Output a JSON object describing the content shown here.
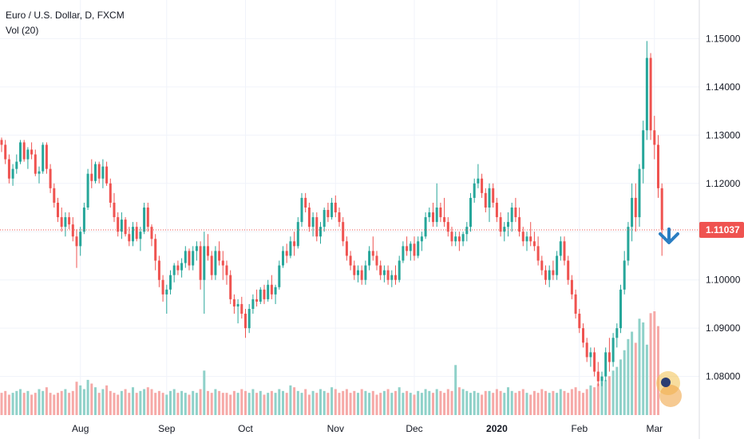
{
  "header": {
    "title": "Euro / U.S. Dollar, D, FXCM",
    "indicator": "Vol (20)"
  },
  "colors": {
    "up": "#26a69a",
    "down": "#ef5350",
    "vol_up": "#8fd1c9",
    "vol_down": "#f6a9a7",
    "grid": "#f0f3fa",
    "axis_text": "#131722",
    "price_line": "#ef5350",
    "arrow": "#2a7ec2",
    "badge_bg": "#f2c14e"
  },
  "price_badge": "1.11037",
  "chart_data": {
    "type": "candlestick",
    "symbol": "EURUSD",
    "timeframe": "D",
    "ylim": [
      1.072,
      1.158
    ],
    "y_ticks": [
      "1.08000",
      "1.09000",
      "1.10000",
      "1.11000",
      "1.12000",
      "1.13000",
      "1.14000",
      "1.15000"
    ],
    "x_ticks": [
      {
        "label": "Aug",
        "bar": 21
      },
      {
        "label": "Sep",
        "bar": 44
      },
      {
        "label": "Oct",
        "bar": 65
      },
      {
        "label": "Nov",
        "bar": 89
      },
      {
        "label": "Dec",
        "bar": 110
      },
      {
        "label": "2020",
        "bar": 132
      },
      {
        "label": "Feb",
        "bar": 154
      },
      {
        "label": "Mar",
        "bar": 174
      }
    ],
    "last_price": 1.11037,
    "bars": [
      [
        1.129,
        1.1295,
        1.1265,
        1.128
      ],
      [
        1.128,
        1.129,
        1.124,
        1.125
      ],
      [
        1.125,
        1.126,
        1.12,
        1.121
      ],
      [
        1.121,
        1.124,
        1.1195,
        1.123
      ],
      [
        1.123,
        1.126,
        1.122,
        1.1245
      ],
      [
        1.1245,
        1.129,
        1.124,
        1.1285
      ],
      [
        1.1285,
        1.129,
        1.1245,
        1.125
      ],
      [
        1.125,
        1.1275,
        1.123,
        1.127
      ],
      [
        1.127,
        1.1285,
        1.125,
        1.126
      ],
      [
        1.126,
        1.127,
        1.1215,
        1.122
      ],
      [
        1.122,
        1.1235,
        1.12,
        1.1225
      ],
      [
        1.1225,
        1.1285,
        1.122,
        1.128
      ],
      [
        1.128,
        1.1285,
        1.122,
        1.123
      ],
      [
        1.123,
        1.124,
        1.118,
        1.119
      ],
      [
        1.119,
        1.12,
        1.115,
        1.116
      ],
      [
        1.116,
        1.117,
        1.112,
        1.113
      ],
      [
        1.113,
        1.115,
        1.11,
        1.111
      ],
      [
        1.111,
        1.114,
        1.109,
        1.113
      ],
      [
        1.113,
        1.114,
        1.1105,
        1.1115
      ],
      [
        1.1115,
        1.113,
        1.108,
        1.109
      ],
      [
        1.109,
        1.1105,
        1.1025,
        1.107
      ],
      [
        1.107,
        1.111,
        1.105,
        1.11
      ],
      [
        1.11,
        1.116,
        1.1095,
        1.115
      ],
      [
        1.115,
        1.123,
        1.1145,
        1.122
      ],
      [
        1.122,
        1.125,
        1.119,
        1.1205
      ],
      [
        1.1205,
        1.1245,
        1.12,
        1.124
      ],
      [
        1.124,
        1.1245,
        1.12,
        1.121
      ],
      [
        1.121,
        1.125,
        1.119,
        1.1235
      ],
      [
        1.1235,
        1.1245,
        1.1195,
        1.12
      ],
      [
        1.12,
        1.121,
        1.115,
        1.116
      ],
      [
        1.116,
        1.118,
        1.112,
        1.113
      ],
      [
        1.113,
        1.114,
        1.109,
        1.11
      ],
      [
        1.11,
        1.114,
        1.1085,
        1.1125
      ],
      [
        1.1125,
        1.113,
        1.109,
        1.1095
      ],
      [
        1.1095,
        1.111,
        1.107,
        1.108
      ],
      [
        1.108,
        1.112,
        1.107,
        1.111
      ],
      [
        1.111,
        1.112,
        1.108,
        1.1085
      ],
      [
        1.1085,
        1.111,
        1.106,
        1.11
      ],
      [
        1.11,
        1.116,
        1.1095,
        1.115
      ],
      [
        1.115,
        1.116,
        1.11,
        1.111
      ],
      [
        1.111,
        1.1115,
        1.107,
        1.1085
      ],
      [
        1.1085,
        1.1095,
        1.102,
        1.104
      ],
      [
        1.104,
        1.105,
        1.0985,
        1.1
      ],
      [
        1.1,
        1.101,
        1.0955,
        1.097
      ],
      [
        1.097,
        1.099,
        1.093,
        1.098
      ],
      [
        1.098,
        1.102,
        1.097,
        1.101
      ],
      [
        1.101,
        1.1035,
        1.0995,
        1.103
      ],
      [
        1.103,
        1.104,
        1.101,
        1.102
      ],
      [
        1.102,
        1.1045,
        1.1005,
        1.1035
      ],
      [
        1.1035,
        1.107,
        1.1025,
        1.106
      ],
      [
        1.106,
        1.1065,
        1.102,
        1.103
      ],
      [
        1.103,
        1.107,
        1.102,
        1.106
      ],
      [
        1.106,
        1.108,
        1.104,
        1.107
      ],
      [
        1.107,
        1.108,
        1.098,
        1.1
      ],
      [
        1.1,
        1.11,
        1.093,
        1.107
      ],
      [
        1.107,
        1.1095,
        1.104,
        1.105
      ],
      [
        1.105,
        1.106,
        1.1,
        1.101
      ],
      [
        1.101,
        1.107,
        1.1,
        1.106
      ],
      [
        1.106,
        1.108,
        1.103,
        1.104
      ],
      [
        1.104,
        1.106,
        1.1,
        1.103
      ],
      [
        1.103,
        1.104,
        1.099,
        1.101
      ],
      [
        1.101,
        1.102,
        1.095,
        1.096
      ],
      [
        1.096,
        1.097,
        1.093,
        1.0945
      ],
      [
        1.0945,
        1.096,
        1.091,
        1.095
      ],
      [
        1.095,
        1.0965,
        1.092,
        1.093
      ],
      [
        1.093,
        1.094,
        1.088,
        1.09
      ],
      [
        1.09,
        1.095,
        1.089,
        1.094
      ],
      [
        1.094,
        1.097,
        1.093,
        1.096
      ],
      [
        1.096,
        1.098,
        1.0945,
        1.0955
      ],
      [
        1.0955,
        1.0985,
        1.095,
        1.098
      ],
      [
        1.098,
        1.099,
        1.095,
        1.096
      ],
      [
        1.096,
        1.1,
        1.0955,
        1.099
      ],
      [
        1.099,
        1.101,
        1.096,
        1.097
      ],
      [
        1.097,
        1.099,
        1.095,
        1.0985
      ],
      [
        1.0985,
        1.104,
        1.098,
        1.103
      ],
      [
        1.103,
        1.107,
        1.1025,
        1.106
      ],
      [
        1.106,
        1.1075,
        1.1035,
        1.105
      ],
      [
        1.105,
        1.109,
        1.1045,
        1.108
      ],
      [
        1.108,
        1.11,
        1.105,
        1.107
      ],
      [
        1.107,
        1.113,
        1.1065,
        1.112
      ],
      [
        1.112,
        1.118,
        1.111,
        1.117
      ],
      [
        1.117,
        1.118,
        1.114,
        1.115
      ],
      [
        1.115,
        1.116,
        1.11,
        1.111
      ],
      [
        1.111,
        1.114,
        1.109,
        1.113
      ],
      [
        1.113,
        1.114,
        1.108,
        1.109
      ],
      [
        1.109,
        1.112,
        1.1075,
        1.111
      ],
      [
        1.111,
        1.115,
        1.11,
        1.1145
      ],
      [
        1.1145,
        1.116,
        1.112,
        1.113
      ],
      [
        1.113,
        1.117,
        1.1125,
        1.116
      ],
      [
        1.116,
        1.1175,
        1.113,
        1.114
      ],
      [
        1.114,
        1.115,
        1.111,
        1.112
      ],
      [
        1.112,
        1.113,
        1.107,
        1.108
      ],
      [
        1.108,
        1.109,
        1.104,
        1.105
      ],
      [
        1.105,
        1.106,
        1.102,
        1.103
      ],
      [
        1.103,
        1.104,
        1.1,
        1.101
      ],
      [
        1.101,
        1.103,
        1.0995,
        1.102
      ],
      [
        1.102,
        1.103,
        1.099,
        1.1
      ],
      [
        1.1,
        1.104,
        1.099,
        1.103
      ],
      [
        1.103,
        1.107,
        1.102,
        1.106
      ],
      [
        1.106,
        1.109,
        1.104,
        1.105
      ],
      [
        1.105,
        1.106,
        1.102,
        1.103
      ],
      [
        1.103,
        1.104,
        1.1,
        1.101
      ],
      [
        1.101,
        1.103,
        1.0995,
        1.102
      ],
      [
        1.102,
        1.103,
        1.099,
        1.1
      ],
      [
        1.1,
        1.102,
        1.0985,
        1.101
      ],
      [
        1.101,
        1.103,
        1.099,
        1.1
      ],
      [
        1.1,
        1.105,
        1.0995,
        1.104
      ],
      [
        1.104,
        1.108,
        1.1035,
        1.107
      ],
      [
        1.107,
        1.109,
        1.105,
        1.106
      ],
      [
        1.106,
        1.108,
        1.104,
        1.1075
      ],
      [
        1.1075,
        1.109,
        1.104,
        1.105
      ],
      [
        1.105,
        1.109,
        1.1045,
        1.108
      ],
      [
        1.108,
        1.11,
        1.106,
        1.109
      ],
      [
        1.109,
        1.114,
        1.1085,
        1.113
      ],
      [
        1.113,
        1.115,
        1.112,
        1.114
      ],
      [
        1.114,
        1.116,
        1.111,
        1.112
      ],
      [
        1.112,
        1.12,
        1.111,
        1.115
      ],
      [
        1.115,
        1.116,
        1.112,
        1.113
      ],
      [
        1.113,
        1.117,
        1.111,
        1.112
      ],
      [
        1.112,
        1.113,
        1.109,
        1.11
      ],
      [
        1.11,
        1.111,
        1.107,
        1.108
      ],
      [
        1.108,
        1.11,
        1.107,
        1.109
      ],
      [
        1.109,
        1.11,
        1.106,
        1.108
      ],
      [
        1.108,
        1.11,
        1.107,
        1.1095
      ],
      [
        1.1095,
        1.112,
        1.108,
        1.111
      ],
      [
        1.111,
        1.118,
        1.11,
        1.117
      ],
      [
        1.117,
        1.121,
        1.116,
        1.12
      ],
      [
        1.12,
        1.124,
        1.119,
        1.121
      ],
      [
        1.121,
        1.122,
        1.117,
        1.118
      ],
      [
        1.118,
        1.119,
        1.114,
        1.115
      ],
      [
        1.115,
        1.12,
        1.112,
        1.119
      ],
      [
        1.119,
        1.12,
        1.115,
        1.116
      ],
      [
        1.116,
        1.117,
        1.112,
        1.113
      ],
      [
        1.113,
        1.114,
        1.109,
        1.11
      ],
      [
        1.11,
        1.112,
        1.108,
        1.111
      ],
      [
        1.111,
        1.114,
        1.109,
        1.112
      ],
      [
        1.112,
        1.116,
        1.11,
        1.115
      ],
      [
        1.115,
        1.117,
        1.112,
        1.113
      ],
      [
        1.113,
        1.115,
        1.109,
        1.11
      ],
      [
        1.11,
        1.111,
        1.107,
        1.108
      ],
      [
        1.108,
        1.11,
        1.106,
        1.109
      ],
      [
        1.109,
        1.112,
        1.107,
        1.108
      ],
      [
        1.108,
        1.11,
        1.106,
        1.107
      ],
      [
        1.107,
        1.109,
        1.103,
        1.104
      ],
      [
        1.104,
        1.105,
        1.101,
        1.102
      ],
      [
        1.102,
        1.103,
        1.099,
        1.1
      ],
      [
        1.1,
        1.103,
        1.0985,
        1.102
      ],
      [
        1.102,
        1.104,
        1.1,
        1.101
      ],
      [
        1.101,
        1.106,
        1.1,
        1.105
      ],
      [
        1.105,
        1.109,
        1.104,
        1.108
      ],
      [
        1.108,
        1.109,
        1.103,
        1.104
      ],
      [
        1.104,
        1.105,
        1.099,
        1.1
      ],
      [
        1.1,
        1.101,
        1.096,
        1.097
      ],
      [
        1.097,
        1.098,
        1.092,
        1.093
      ],
      [
        1.093,
        1.094,
        1.089,
        1.09
      ],
      [
        1.09,
        1.091,
        1.086,
        1.087
      ],
      [
        1.087,
        1.088,
        1.083,
        1.084
      ],
      [
        1.084,
        1.086,
        1.082,
        1.085
      ],
      [
        1.085,
        1.086,
        1.08,
        1.081
      ],
      [
        1.081,
        1.083,
        1.078,
        1.079
      ],
      [
        1.079,
        1.081,
        1.078,
        1.08
      ],
      [
        1.08,
        1.086,
        1.079,
        1.085
      ],
      [
        1.085,
        1.088,
        1.081,
        1.083
      ],
      [
        1.083,
        1.089,
        1.082,
        1.088
      ],
      [
        1.088,
        1.091,
        1.086,
        1.09
      ],
      [
        1.09,
        1.099,
        1.089,
        1.098
      ],
      [
        1.098,
        1.106,
        1.097,
        1.104
      ],
      [
        1.104,
        1.112,
        1.103,
        1.111
      ],
      [
        1.111,
        1.12,
        1.108,
        1.117
      ],
      [
        1.117,
        1.12,
        1.11,
        1.113
      ],
      [
        1.113,
        1.124,
        1.111,
        1.123
      ],
      [
        1.123,
        1.133,
        1.12,
        1.131
      ],
      [
        1.131,
        1.1495,
        1.129,
        1.146
      ],
      [
        1.146,
        1.147,
        1.129,
        1.131
      ],
      [
        1.131,
        1.134,
        1.125,
        1.128
      ],
      [
        1.128,
        1.13,
        1.117,
        1.119
      ],
      [
        1.119,
        1.12,
        1.105,
        1.1104
      ]
    ],
    "volume": [
      12,
      13,
      11,
      12,
      13,
      14,
      12,
      13,
      11,
      12,
      14,
      13,
      15,
      12,
      11,
      12,
      13,
      14,
      12,
      13,
      18,
      16,
      14,
      19,
      17,
      15,
      12,
      14,
      16,
      13,
      12,
      11,
      13,
      14,
      12,
      15,
      12,
      13,
      14,
      15,
      14,
      12,
      13,
      12,
      11,
      13,
      14,
      12,
      13,
      12,
      11,
      13,
      12,
      14,
      24,
      13,
      12,
      14,
      13,
      12,
      12,
      11,
      13,
      12,
      14,
      13,
      12,
      14,
      12,
      13,
      11,
      12,
      13,
      12,
      14,
      13,
      12,
      16,
      15,
      13,
      12,
      14,
      11,
      13,
      12,
      14,
      13,
      12,
      15,
      14,
      12,
      13,
      14,
      12,
      13,
      12,
      14,
      13,
      12,
      13,
      11,
      12,
      13,
      14,
      12,
      13,
      15,
      12,
      13,
      12,
      11,
      13,
      12,
      14,
      13,
      12,
      14,
      13,
      12,
      14,
      13,
      27,
      15,
      14,
      13,
      12,
      13,
      12,
      11,
      13,
      13,
      12,
      14,
      13,
      12,
      15,
      13,
      12,
      13,
      14,
      12,
      11,
      13,
      12,
      14,
      13,
      12,
      13,
      12,
      14,
      13,
      12,
      14,
      15,
      13,
      12,
      14,
      16,
      15,
      17,
      18,
      19,
      21,
      24,
      26,
      30,
      35,
      41,
      45,
      39,
      52,
      50,
      38,
      55,
      56,
      48
    ]
  }
}
